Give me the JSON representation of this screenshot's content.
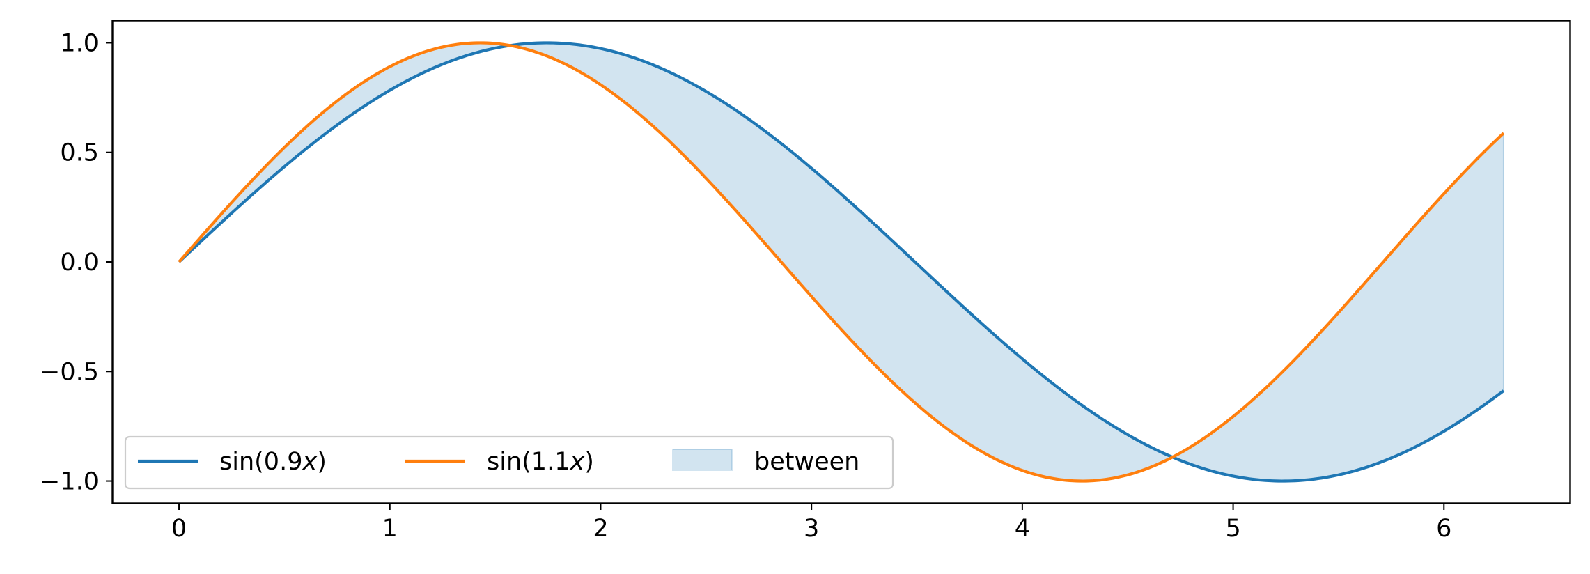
{
  "chart_data": {
    "type": "line",
    "title": "",
    "xlabel": "",
    "ylabel": "",
    "xlim": [
      -0.314,
      6.597
    ],
    "ylim": [
      -1.1,
      1.1
    ],
    "x_range": [
      0,
      6.283
    ],
    "x_ticks": [
      0,
      1,
      2,
      3,
      4,
      5,
      6
    ],
    "x_tick_labels": [
      "0",
      "1",
      "2",
      "3",
      "4",
      "5",
      "6"
    ],
    "y_ticks": [
      1.0,
      0.5,
      0.0,
      -0.5,
      -1.0
    ],
    "y_tick_labels": [
      "1.0",
      "0.5",
      "0.0",
      "−0.5",
      "−1.0"
    ],
    "grid": false,
    "legend": {
      "placement": "lower-left",
      "columns": 3
    },
    "series": [
      {
        "name": "sin(0.9x)",
        "legend_prefix": "sin(0.9",
        "legend_var": "x",
        "legend_suffix": ")",
        "function": "sin(0.9*x)",
        "frequency": 0.9,
        "color": "#1f77b4",
        "sample_points": [
          {
            "x": 0,
            "y": 0.0
          },
          {
            "x": 1,
            "y": 0.78
          },
          {
            "x": 1.745,
            "y": 1.0
          },
          {
            "x": 3,
            "y": 0.43
          },
          {
            "x": 4,
            "y": -0.44
          },
          {
            "x": 5.236,
            "y": -1.0
          },
          {
            "x": 6.283,
            "y": -0.59
          }
        ]
      },
      {
        "name": "sin(1.1x)",
        "legend_prefix": "sin(1.1",
        "legend_var": "x",
        "legend_suffix": ")",
        "function": "sin(1.1*x)",
        "frequency": 1.1,
        "color": "#ff7f0e",
        "sample_points": [
          {
            "x": 0,
            "y": 0.0
          },
          {
            "x": 1.428,
            "y": 1.0
          },
          {
            "x": 3,
            "y": -0.16
          },
          {
            "x": 4.284,
            "y": -1.0
          },
          {
            "x": 5,
            "y": -0.71
          },
          {
            "x": 6.283,
            "y": 0.59
          }
        ]
      }
    ],
    "fill": {
      "name": "between",
      "between": [
        "sin(0.9x)",
        "sin(1.1x)"
      ],
      "color": "#1f77b4",
      "alpha": 0.2
    }
  }
}
